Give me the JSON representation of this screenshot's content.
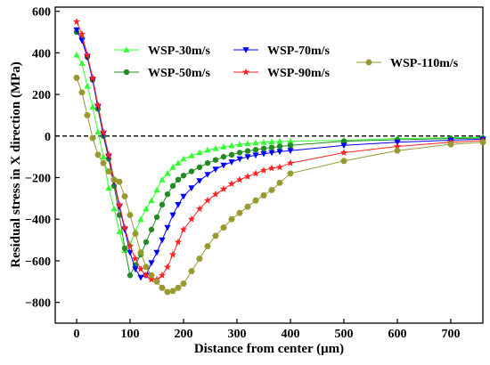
{
  "chart_data": {
    "type": "line",
    "xlabel": "Distance from center (μm)",
    "ylabel": "Residual stress in X direction (MPa)",
    "xlim": [
      -40,
      760
    ],
    "ylim": [
      -900,
      620
    ],
    "xticks": [
      0,
      100,
      200,
      300,
      400,
      500,
      600,
      700
    ],
    "yticks": [
      600,
      400,
      200,
      0,
      -200,
      -400,
      -600,
      -800
    ],
    "grid": false,
    "legend_position": "top-center",
    "reference_line": {
      "y": 0,
      "style": "dashed"
    },
    "series": [
      {
        "name": "WSP-30m/s",
        "color": "#33ff33",
        "marker": "triangle-up",
        "points": [
          [
            0,
            390
          ],
          [
            10,
            350
          ],
          [
            20,
            240
          ],
          [
            30,
            140
          ],
          [
            40,
            20
          ],
          [
            50,
            -100
          ],
          [
            60,
            -250
          ],
          [
            70,
            -350
          ],
          [
            80,
            -460
          ],
          [
            90,
            -550
          ],
          [
            100,
            -520
          ],
          [
            110,
            -460
          ],
          [
            120,
            -400
          ],
          [
            130,
            -350
          ],
          [
            140,
            -310
          ],
          [
            150,
            -260
          ],
          [
            160,
            -210
          ],
          [
            170,
            -180
          ],
          [
            180,
            -150
          ],
          [
            190,
            -130
          ],
          [
            200,
            -110
          ],
          [
            215,
            -95
          ],
          [
            230,
            -80
          ],
          [
            245,
            -68
          ],
          [
            260,
            -60
          ],
          [
            275,
            -52
          ],
          [
            290,
            -46
          ],
          [
            305,
            -40
          ],
          [
            320,
            -36
          ],
          [
            335,
            -33
          ],
          [
            350,
            -30
          ],
          [
            365,
            -28
          ],
          [
            380,
            -26
          ],
          [
            400,
            -25
          ],
          [
            500,
            -20
          ],
          [
            600,
            -12
          ],
          [
            700,
            -8
          ],
          [
            760,
            -6
          ]
        ]
      },
      {
        "name": "WSP-50m/s",
        "color": "#228b22",
        "marker": "circle",
        "points": [
          [
            0,
            500
          ],
          [
            10,
            470
          ],
          [
            20,
            380
          ],
          [
            30,
            270
          ],
          [
            40,
            130
          ],
          [
            50,
            0
          ],
          [
            60,
            -110
          ],
          [
            70,
            -240
          ],
          [
            80,
            -380
          ],
          [
            90,
            -540
          ],
          [
            100,
            -670
          ],
          [
            110,
            -620
          ],
          [
            120,
            -570
          ],
          [
            130,
            -510
          ],
          [
            140,
            -450
          ],
          [
            150,
            -390
          ],
          [
            160,
            -330
          ],
          [
            170,
            -280
          ],
          [
            180,
            -240
          ],
          [
            190,
            -210
          ],
          [
            200,
            -190
          ],
          [
            215,
            -170
          ],
          [
            230,
            -150
          ],
          [
            245,
            -130
          ],
          [
            260,
            -115
          ],
          [
            275,
            -100
          ],
          [
            290,
            -90
          ],
          [
            305,
            -80
          ],
          [
            320,
            -72
          ],
          [
            335,
            -66
          ],
          [
            350,
            -60
          ],
          [
            365,
            -55
          ],
          [
            380,
            -50
          ],
          [
            400,
            -45
          ],
          [
            500,
            -25
          ],
          [
            600,
            -18
          ],
          [
            700,
            -12
          ],
          [
            760,
            -10
          ]
        ]
      },
      {
        "name": "WSP-70m/s",
        "color": "#0000ff",
        "marker": "triangle-down",
        "points": [
          [
            0,
            510
          ],
          [
            10,
            460
          ],
          [
            20,
            380
          ],
          [
            30,
            270
          ],
          [
            40,
            140
          ],
          [
            50,
            10
          ],
          [
            60,
            -100
          ],
          [
            70,
            -220
          ],
          [
            80,
            -340
          ],
          [
            90,
            -450
          ],
          [
            100,
            -560
          ],
          [
            110,
            -640
          ],
          [
            120,
            -680
          ],
          [
            130,
            -670
          ],
          [
            140,
            -610
          ],
          [
            150,
            -560
          ],
          [
            160,
            -500
          ],
          [
            170,
            -440
          ],
          [
            180,
            -380
          ],
          [
            190,
            -330
          ],
          [
            200,
            -290
          ],
          [
            215,
            -250
          ],
          [
            230,
            -215
          ],
          [
            245,
            -185
          ],
          [
            260,
            -160
          ],
          [
            275,
            -140
          ],
          [
            290,
            -125
          ],
          [
            305,
            -110
          ],
          [
            320,
            -100
          ],
          [
            335,
            -92
          ],
          [
            350,
            -85
          ],
          [
            365,
            -80
          ],
          [
            380,
            -75
          ],
          [
            400,
            -70
          ],
          [
            500,
            -45
          ],
          [
            600,
            -30
          ],
          [
            700,
            -20
          ],
          [
            760,
            -15
          ]
        ]
      },
      {
        "name": "WSP-90m/s",
        "color": "#ff2222",
        "marker": "star",
        "points": [
          [
            0,
            550
          ],
          [
            10,
            490
          ],
          [
            20,
            390
          ],
          [
            30,
            280
          ],
          [
            40,
            150
          ],
          [
            50,
            20
          ],
          [
            60,
            -90
          ],
          [
            70,
            -210
          ],
          [
            80,
            -330
          ],
          [
            90,
            -440
          ],
          [
            100,
            -530
          ],
          [
            110,
            -590
          ],
          [
            120,
            -640
          ],
          [
            130,
            -670
          ],
          [
            140,
            -690
          ],
          [
            150,
            -690
          ],
          [
            160,
            -670
          ],
          [
            170,
            -630
          ],
          [
            180,
            -570
          ],
          [
            190,
            -510
          ],
          [
            200,
            -450
          ],
          [
            215,
            -400
          ],
          [
            230,
            -350
          ],
          [
            245,
            -310
          ],
          [
            260,
            -280
          ],
          [
            275,
            -255
          ],
          [
            290,
            -230
          ],
          [
            305,
            -210
          ],
          [
            320,
            -195
          ],
          [
            335,
            -180
          ],
          [
            350,
            -165
          ],
          [
            365,
            -155
          ],
          [
            380,
            -150
          ],
          [
            400,
            -130
          ],
          [
            500,
            -80
          ],
          [
            600,
            -50
          ],
          [
            700,
            -30
          ],
          [
            760,
            -22
          ]
        ]
      },
      {
        "name": "WSP-110m/s",
        "color": "#999933",
        "marker": "hexagon",
        "points": [
          [
            0,
            280
          ],
          [
            10,
            210
          ],
          [
            20,
            100
          ],
          [
            30,
            -10
          ],
          [
            40,
            -90
          ],
          [
            50,
            -130
          ],
          [
            60,
            -170
          ],
          [
            70,
            -210
          ],
          [
            80,
            -220
          ],
          [
            90,
            -290
          ],
          [
            100,
            -380
          ],
          [
            110,
            -470
          ],
          [
            120,
            -560
          ],
          [
            130,
            -630
          ],
          [
            140,
            -670
          ],
          [
            150,
            -700
          ],
          [
            160,
            -730
          ],
          [
            170,
            -750
          ],
          [
            180,
            -745
          ],
          [
            190,
            -730
          ],
          [
            200,
            -710
          ],
          [
            215,
            -650
          ],
          [
            230,
            -590
          ],
          [
            245,
            -530
          ],
          [
            260,
            -480
          ],
          [
            275,
            -440
          ],
          [
            290,
            -400
          ],
          [
            305,
            -370
          ],
          [
            320,
            -340
          ],
          [
            335,
            -310
          ],
          [
            350,
            -285
          ],
          [
            365,
            -260
          ],
          [
            380,
            -225
          ],
          [
            400,
            -180
          ],
          [
            500,
            -120
          ],
          [
            600,
            -70
          ],
          [
            700,
            -40
          ],
          [
            760,
            -30
          ]
        ]
      }
    ]
  }
}
